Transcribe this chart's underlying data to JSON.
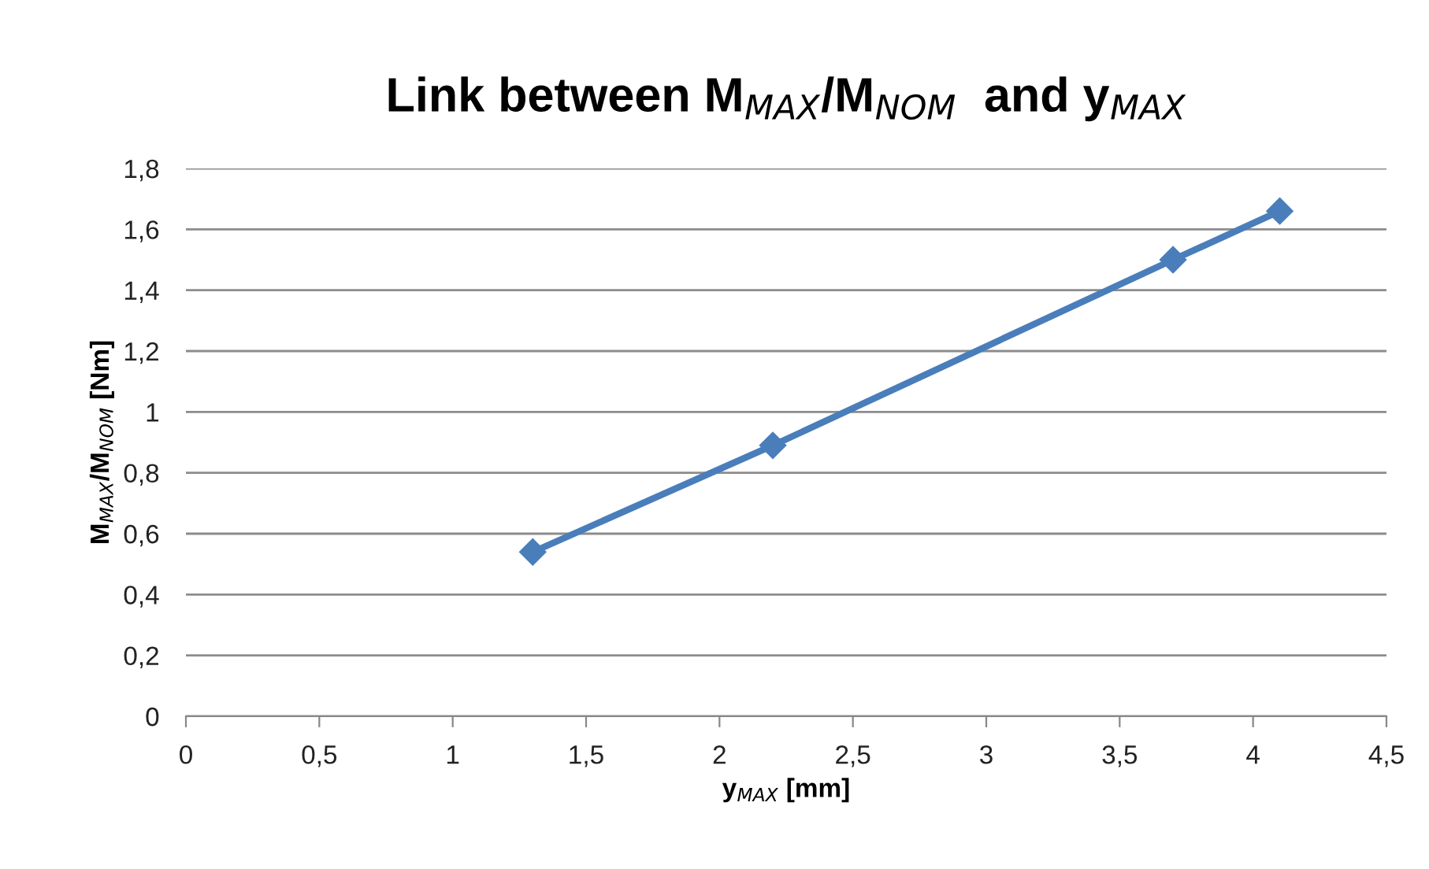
{
  "chart_data": {
    "type": "line",
    "title": "Link between M$_{MAX}$/M$_{NOM}$  and y$_{MAX}$",
    "xlabel": "y$_{MAX}$ [mm]",
    "ylabel": "M$_{MAX}$/M$_{NOM}$ [Nm]",
    "series": [
      {
        "color": "#4a7ebb",
        "x": [
          1.3,
          2.2,
          3.7,
          4.1
        ],
        "values": [
          0.54,
          0.89,
          1.5,
          1.66
        ]
      }
    ],
    "xlim": [
      0,
      4.5
    ],
    "xticks": [
      0,
      {
        "value": 0.5,
        "label": "0,5"
      },
      1,
      {
        "value": 1.5,
        "label": "1,5"
      },
      2,
      {
        "value": 2.5,
        "label": "2,5"
      },
      3,
      {
        "value": 3.5,
        "label": "3,5"
      },
      4,
      {
        "value": 4.5,
        "label": "4,5"
      }
    ],
    "ylim": [
      0,
      1.8
    ],
    "yticks": [
      0,
      {
        "value": 0.2,
        "label": "0,2"
      },
      {
        "value": 0.4,
        "label": "0,4"
      },
      {
        "value": 0.6,
        "label": "0,6"
      },
      {
        "value": 0.8,
        "label": "0,8"
      },
      1,
      {
        "value": 1.2,
        "label": "1,2"
      },
      {
        "value": 1.4,
        "label": "1,4"
      },
      {
        "value": 1.6,
        "label": "1,6"
      },
      {
        "value": 1.8,
        "label": "1,8"
      }
    ],
    "grid": "y",
    "marker": "diamond",
    "line_style": "solid"
  }
}
